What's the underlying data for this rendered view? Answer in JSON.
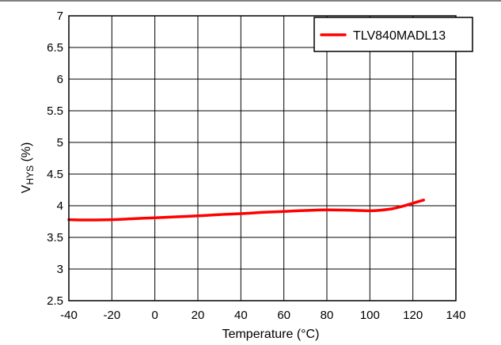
{
  "chart_data": {
    "type": "line",
    "title": "",
    "xlabel": "Temperature (°C)",
    "ylabel_main": "V",
    "ylabel_sub": "HYS",
    "ylabel_suffix": " (%)",
    "xlim": [
      -40,
      140
    ],
    "ylim": [
      2.5,
      7
    ],
    "x_ticks": [
      -40,
      -20,
      0,
      20,
      40,
      60,
      80,
      100,
      120,
      140
    ],
    "y_ticks": [
      2.5,
      3,
      3.5,
      4,
      4.5,
      5,
      5.5,
      6,
      6.5,
      7
    ],
    "x_tick_labels": [
      "-40",
      "-20",
      "0",
      "20",
      "40",
      "60",
      "80",
      "100",
      "120",
      "140"
    ],
    "y_tick_labels": [
      "2.5",
      "3",
      "3.5",
      "4",
      "4.5",
      "5",
      "5.5",
      "6",
      "6.5",
      "7"
    ],
    "grid": true,
    "legend_position": "top-right",
    "series": [
      {
        "name": "TLV840MADL13",
        "color": "#ff0000",
        "x": [
          -40,
          -30,
          -20,
          -10,
          0,
          10,
          20,
          30,
          40,
          50,
          60,
          70,
          80,
          90,
          100,
          105,
          110,
          115,
          120,
          125
        ],
        "y": [
          3.78,
          3.775,
          3.78,
          3.795,
          3.81,
          3.825,
          3.84,
          3.86,
          3.875,
          3.895,
          3.91,
          3.925,
          3.935,
          3.93,
          3.92,
          3.93,
          3.95,
          3.99,
          4.04,
          4.09
        ]
      }
    ]
  }
}
